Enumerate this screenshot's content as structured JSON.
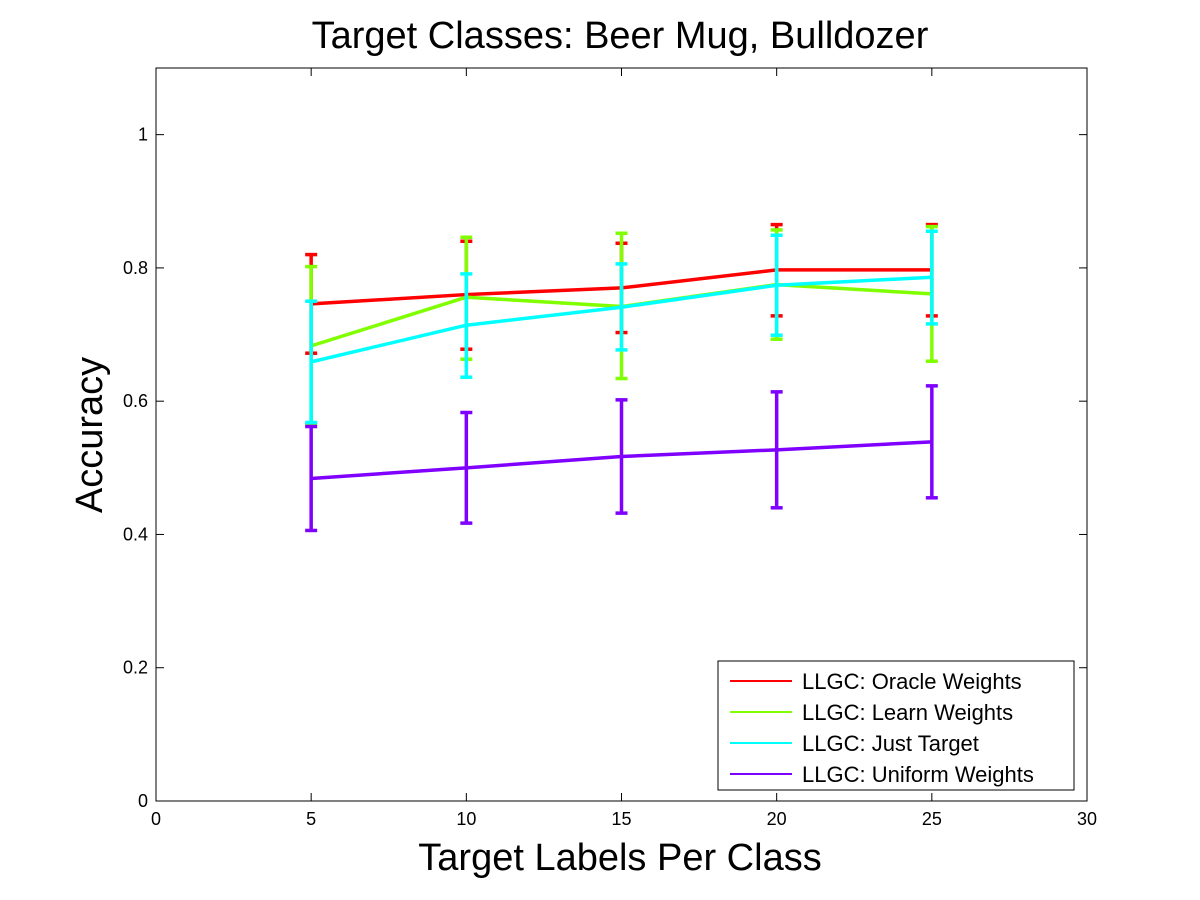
{
  "chart_data": {
    "type": "line",
    "title": "Target Classes: Beer Mug, Bulldozer",
    "xlabel": "Target Labels Per Class",
    "ylabel": "Accuracy",
    "xlim": [
      0,
      30
    ],
    "ylim": [
      0,
      1.1
    ],
    "xticks": [
      "0",
      "5",
      "10",
      "15",
      "20",
      "25",
      "30"
    ],
    "yticks": [
      "0",
      "0.2",
      "0.4",
      "0.6",
      "0.8",
      "1"
    ],
    "grid": false,
    "legend_position": "bottom-right",
    "x": [
      5,
      10,
      15,
      20,
      25
    ],
    "series": [
      {
        "name": "LLGC: Oracle Weights",
        "color": "#ff0000",
        "values": [
          0.746,
          0.76,
          0.77,
          0.797,
          0.797
        ],
        "err_low": [
          0.672,
          0.678,
          0.703,
          0.728,
          0.728
        ],
        "err_high": [
          0.82,
          0.84,
          0.837,
          0.865,
          0.865
        ]
      },
      {
        "name": "LLGC: Learn Weights",
        "color": "#80ff00",
        "values": [
          0.683,
          0.756,
          0.742,
          0.775,
          0.761
        ],
        "err_low": [
          0.565,
          0.663,
          0.634,
          0.693,
          0.66
        ],
        "err_high": [
          0.802,
          0.846,
          0.852,
          0.857,
          0.862
        ]
      },
      {
        "name": "LLGC: Just Target",
        "color": "#00ffff",
        "values": [
          0.659,
          0.714,
          0.741,
          0.774,
          0.786
        ],
        "err_low": [
          0.568,
          0.636,
          0.677,
          0.699,
          0.716
        ],
        "err_high": [
          0.75,
          0.791,
          0.806,
          0.849,
          0.855
        ]
      },
      {
        "name": "LLGC: Uniform Weights",
        "color": "#8000ff",
        "values": [
          0.484,
          0.5,
          0.517,
          0.527,
          0.539
        ],
        "err_low": [
          0.406,
          0.417,
          0.432,
          0.44,
          0.455
        ],
        "err_high": [
          0.562,
          0.583,
          0.602,
          0.614,
          0.623
        ]
      }
    ]
  }
}
